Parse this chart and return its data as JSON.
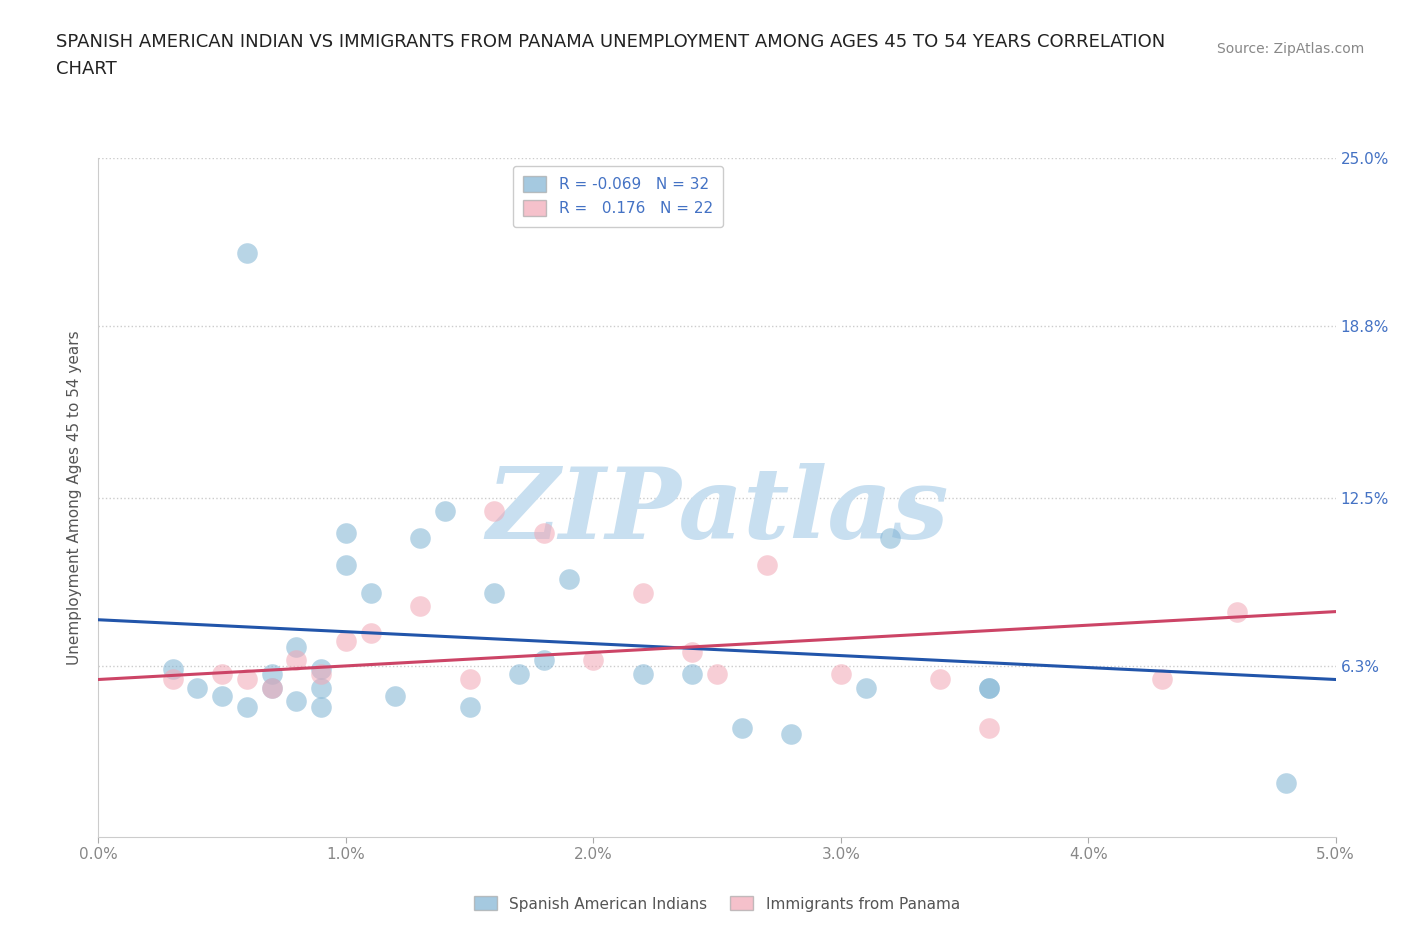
{
  "title_line1": "SPANISH AMERICAN INDIAN VS IMMIGRANTS FROM PANAMA UNEMPLOYMENT AMONG AGES 45 TO 54 YEARS CORRELATION",
  "title_line2": "CHART",
  "source": "Source: ZipAtlas.com",
  "ylabel": "Unemployment Among Ages 45 to 54 years",
  "xlim": [
    0.0,
    0.05
  ],
  "ylim": [
    0.0,
    0.25
  ],
  "xticks": [
    0.0,
    0.01,
    0.02,
    0.03,
    0.04,
    0.05
  ],
  "xticklabels": [
    "0.0%",
    "1.0%",
    "2.0%",
    "3.0%",
    "4.0%",
    "5.0%"
  ],
  "yticks": [
    0.0,
    0.063,
    0.125,
    0.188,
    0.25
  ],
  "yticklabels": [
    "",
    "6.3%",
    "12.5%",
    "18.8%",
    "25.0%"
  ],
  "grid_color": "#cccccc",
  "background_color": "#ffffff",
  "blue_color": "#7fb3d3",
  "pink_color": "#f1a7b5",
  "blue_label": "Spanish American Indians",
  "pink_label": "Immigrants from Panama",
  "R_blue": -0.069,
  "N_blue": 32,
  "R_pink": 0.176,
  "N_pink": 22,
  "blue_points_x": [
    0.006,
    0.003,
    0.004,
    0.005,
    0.006,
    0.007,
    0.007,
    0.008,
    0.008,
    0.009,
    0.009,
    0.009,
    0.01,
    0.01,
    0.011,
    0.012,
    0.013,
    0.014,
    0.015,
    0.016,
    0.017,
    0.018,
    0.019,
    0.022,
    0.024,
    0.026,
    0.028,
    0.031,
    0.032,
    0.036,
    0.036,
    0.048
  ],
  "blue_points_y": [
    0.215,
    0.062,
    0.055,
    0.052,
    0.048,
    0.06,
    0.055,
    0.07,
    0.05,
    0.062,
    0.055,
    0.048,
    0.1,
    0.112,
    0.09,
    0.052,
    0.11,
    0.12,
    0.048,
    0.09,
    0.06,
    0.065,
    0.095,
    0.06,
    0.06,
    0.04,
    0.038,
    0.055,
    0.11,
    0.055,
    0.055,
    0.02
  ],
  "pink_points_x": [
    0.003,
    0.005,
    0.006,
    0.007,
    0.008,
    0.009,
    0.01,
    0.011,
    0.013,
    0.015,
    0.016,
    0.018,
    0.02,
    0.022,
    0.024,
    0.025,
    0.027,
    0.03,
    0.034,
    0.036,
    0.043,
    0.046
  ],
  "pink_points_y": [
    0.058,
    0.06,
    0.058,
    0.055,
    0.065,
    0.06,
    0.072,
    0.075,
    0.085,
    0.058,
    0.12,
    0.112,
    0.065,
    0.09,
    0.068,
    0.06,
    0.1,
    0.06,
    0.058,
    0.04,
    0.058,
    0.083
  ],
  "blue_line_x0": 0.0,
  "blue_line_y0": 0.08,
  "blue_line_x1": 0.05,
  "blue_line_y1": 0.058,
  "pink_line_x0": 0.0,
  "pink_line_y0": 0.058,
  "pink_line_x1": 0.05,
  "pink_line_y1": 0.083,
  "watermark": "ZIPatlas",
  "watermark_color": "#c8dff0",
  "title_fontsize": 13,
  "axis_label_fontsize": 11,
  "tick_fontsize": 11,
  "legend_fontsize": 11,
  "source_fontsize": 10,
  "right_tick_color": "#4472c4",
  "bottom_tick_color": "#888888",
  "title_color": "#222222",
  "ylabel_color": "#555555",
  "blue_line_color": "#2255aa",
  "pink_line_color": "#cc4466"
}
